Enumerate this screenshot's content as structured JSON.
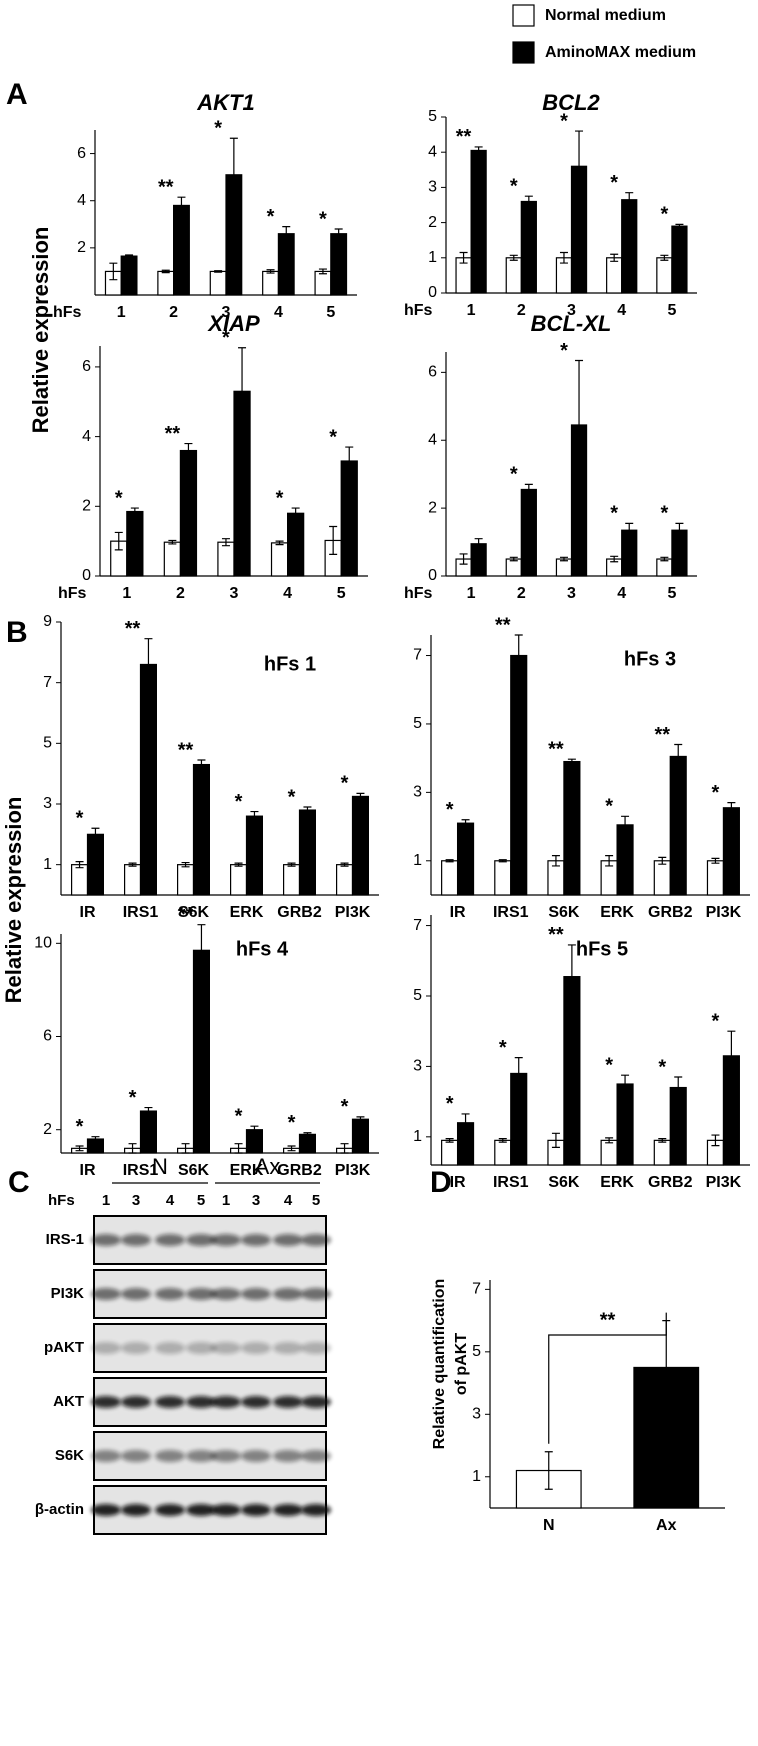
{
  "panels": [
    "A",
    "B",
    "C",
    "D"
  ],
  "chart_data": [
    {
      "type": "bar",
      "title": "AKT1",
      "x_label": "hFs",
      "y_label": "Relative expression",
      "categories": [
        "1",
        "2",
        "3",
        "4",
        "5"
      ],
      "series": [
        {
          "name": "Normal medium",
          "color": "#ffffff",
          "values": [
            1.0,
            1.0,
            1.0,
            1.0,
            1.0
          ],
          "errors": [
            0.35,
            0.05,
            0.03,
            0.07,
            0.1
          ]
        },
        {
          "name": "AminoMAX medium",
          "color": "#000000",
          "values": [
            1.65,
            3.8,
            5.1,
            2.6,
            2.6
          ],
          "errors": [
            0.05,
            0.35,
            1.55,
            0.3,
            0.2
          ]
        }
      ],
      "annotations": [
        null,
        "**",
        "*",
        "*",
        "*"
      ],
      "ylim": [
        0,
        7
      ],
      "yticks": [
        2,
        4,
        6
      ]
    },
    {
      "type": "bar",
      "title": "BCL2",
      "x_label": "hFs",
      "categories": [
        "1",
        "2",
        "3",
        "4",
        "5"
      ],
      "series": [
        {
          "name": "Normal medium",
          "color": "#ffffff",
          "values": [
            1.0,
            1.0,
            1.0,
            1.0,
            1.0
          ],
          "errors": [
            0.15,
            0.07,
            0.15,
            0.1,
            0.07
          ]
        },
        {
          "name": "AminoMAX medium",
          "color": "#000000",
          "values": [
            4.05,
            2.6,
            3.6,
            2.65,
            1.9
          ],
          "errors": [
            0.1,
            0.15,
            1.0,
            0.2,
            0.05
          ]
        }
      ],
      "annotations": [
        "**",
        "*",
        "*",
        "*",
        "*"
      ],
      "ylim": [
        0,
        5
      ],
      "yticks": [
        0,
        1,
        2,
        3,
        4,
        5
      ]
    },
    {
      "type": "bar",
      "title": "XIAP",
      "x_label": "hFs",
      "categories": [
        "1",
        "2",
        "3",
        "4",
        "5"
      ],
      "series": [
        {
          "name": "Normal medium",
          "color": "#ffffff",
          "values": [
            1.0,
            0.97,
            0.97,
            0.95,
            1.02
          ],
          "errors": [
            0.25,
            0.05,
            0.1,
            0.05,
            0.4
          ]
        },
        {
          "name": "AminoMAX medium",
          "color": "#000000",
          "values": [
            1.85,
            3.6,
            5.3,
            1.8,
            3.3
          ],
          "errors": [
            0.1,
            0.2,
            1.25,
            0.15,
            0.4
          ]
        }
      ],
      "annotations": [
        "*",
        "**",
        "*",
        "*",
        "*"
      ],
      "ylim": [
        0,
        6.6
      ],
      "yticks": [
        0,
        2,
        4,
        6
      ]
    },
    {
      "type": "bar",
      "title": "BCL-XL",
      "x_label": "hFs",
      "categories": [
        "1",
        "2",
        "3",
        "4",
        "5"
      ],
      "series": [
        {
          "name": "Normal medium",
          "color": "#ffffff",
          "values": [
            0.5,
            0.5,
            0.5,
            0.5,
            0.5
          ],
          "errors": [
            0.15,
            0.05,
            0.05,
            0.08,
            0.05
          ]
        },
        {
          "name": "AminoMAX medium",
          "color": "#000000",
          "values": [
            0.95,
            2.55,
            4.45,
            1.35,
            1.35
          ],
          "errors": [
            0.15,
            0.15,
            1.9,
            0.2,
            0.2
          ]
        }
      ],
      "annotations": [
        null,
        "*",
        "*",
        "*",
        "*"
      ],
      "ylim": [
        0,
        6.6
      ],
      "yticks": [
        0,
        2,
        4,
        6
      ]
    },
    {
      "type": "bar",
      "title": "hFs 1",
      "y_label": "Relative expression",
      "categories": [
        "IR",
        "IRS1",
        "S6K",
        "ERK",
        "GRB2",
        "PI3K"
      ],
      "series": [
        {
          "name": "Normal medium",
          "color": "#ffffff",
          "values": [
            1.0,
            1.0,
            1.0,
            1.0,
            1.0,
            1.0
          ],
          "errors": [
            0.1,
            0.05,
            0.07,
            0.05,
            0.05,
            0.05
          ]
        },
        {
          "name": "AminoMAX medium",
          "color": "#000000",
          "values": [
            2.0,
            7.6,
            4.3,
            2.6,
            2.8,
            3.25
          ],
          "errors": [
            0.2,
            0.85,
            0.15,
            0.15,
            0.1,
            0.1
          ]
        }
      ],
      "annotations": [
        "*",
        "**",
        "**",
        "*",
        "*",
        "*"
      ],
      "ylim": [
        0,
        9
      ],
      "yticks": [
        1,
        3,
        5,
        7,
        9
      ]
    },
    {
      "type": "bar",
      "title": "hFs 3",
      "categories": [
        "IR",
        "IRS1",
        "S6K",
        "ERK",
        "GRB2",
        "PI3K"
      ],
      "series": [
        {
          "name": "Normal medium",
          "color": "#ffffff",
          "values": [
            1.0,
            1.0,
            1.0,
            1.0,
            1.0,
            1.0
          ],
          "errors": [
            0.03,
            0.03,
            0.15,
            0.15,
            0.1,
            0.07
          ]
        },
        {
          "name": "AminoMAX medium",
          "color": "#000000",
          "values": [
            2.1,
            7.0,
            3.9,
            2.05,
            4.05,
            2.55
          ],
          "errors": [
            0.1,
            0.6,
            0.07,
            0.25,
            0.35,
            0.15
          ]
        }
      ],
      "annotations": [
        "*",
        "**",
        "**",
        "*",
        "**",
        "*"
      ],
      "ylim": [
        0,
        7.6
      ],
      "yticks": [
        1,
        3,
        5,
        7
      ]
    },
    {
      "type": "bar",
      "title": "hFs 4",
      "categories": [
        "IR",
        "IRS1",
        "S6K",
        "ERK",
        "GRB2",
        "PI3K"
      ],
      "series": [
        {
          "name": "Normal medium",
          "color": "#ffffff",
          "values": [
            1.2,
            1.2,
            1.2,
            1.2,
            1.2,
            1.2
          ],
          "errors": [
            0.1,
            0.2,
            0.2,
            0.2,
            0.1,
            0.2
          ]
        },
        {
          "name": "AminoMAX medium",
          "color": "#000000",
          "values": [
            1.6,
            2.8,
            9.7,
            2.0,
            1.8,
            2.45
          ],
          "errors": [
            0.1,
            0.15,
            1.1,
            0.15,
            0.07,
            0.1
          ]
        }
      ],
      "annotations": [
        "*",
        "*",
        "**",
        "*",
        "*",
        "*"
      ],
      "ylim": [
        1,
        10.4
      ],
      "yticks": [
        2,
        6,
        10
      ]
    },
    {
      "type": "bar",
      "title": "hFs 5",
      "categories": [
        "IR",
        "IRS1",
        "S6K",
        "ERK",
        "GRB2",
        "PI3K"
      ],
      "series": [
        {
          "name": "Normal medium",
          "color": "#ffffff",
          "values": [
            0.9,
            0.9,
            0.9,
            0.9,
            0.9,
            0.9
          ],
          "errors": [
            0.05,
            0.05,
            0.2,
            0.07,
            0.05,
            0.15
          ]
        },
        {
          "name": "AminoMAX medium",
          "color": "#000000",
          "values": [
            1.4,
            2.8,
            5.55,
            2.5,
            2.4,
            3.3
          ],
          "errors": [
            0.25,
            0.45,
            0.9,
            0.25,
            0.3,
            0.7
          ]
        }
      ],
      "annotations": [
        "*",
        "*",
        "**",
        "*",
        "*",
        "*"
      ],
      "ylim": [
        0.2,
        7.3
      ],
      "yticks": [
        1,
        3,
        5,
        7
      ]
    },
    {
      "type": "bar",
      "y_label": [
        "Relative quantification",
        "of pAKT"
      ],
      "categories": [
        "N",
        "Ax"
      ],
      "series": [
        {
          "colors": [
            "#ffffff",
            "#000000"
          ],
          "values": [
            1.2,
            4.5
          ],
          "errors": [
            0.6,
            1.5
          ]
        }
      ],
      "significance": "**",
      "ylim": [
        0,
        7.3
      ],
      "yticks": [
        1,
        3,
        5,
        7
      ]
    }
  ],
  "blot": {
    "groups": [
      "N",
      "Ax"
    ],
    "lane_label": "hFs",
    "lanes": [
      "1",
      "3",
      "4",
      "5",
      "1",
      "3",
      "4",
      "5"
    ],
    "rows": [
      "IRS-1",
      "PI3K",
      "pAKT",
      "AKT",
      "S6K",
      "β-actin"
    ]
  }
}
